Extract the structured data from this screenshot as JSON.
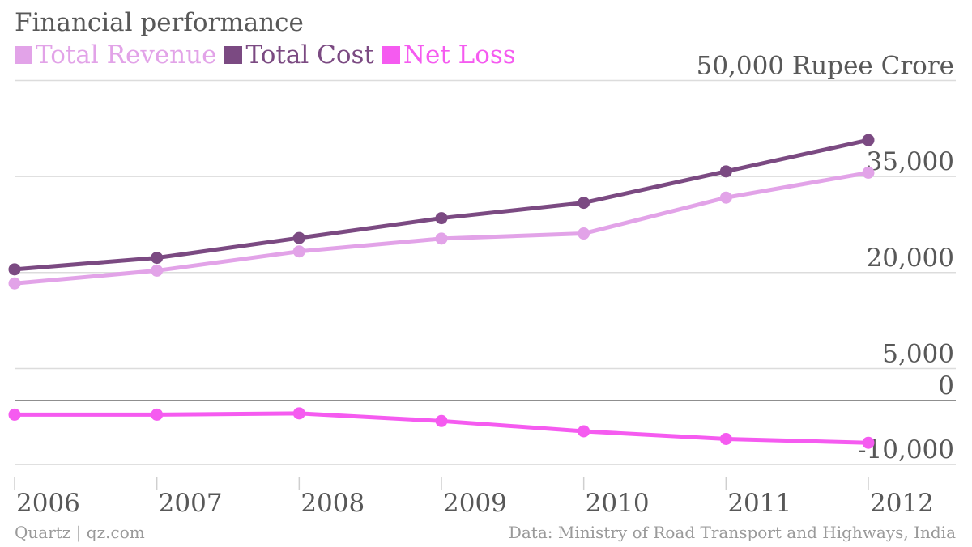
{
  "chart_data": {
    "type": "line",
    "title": "Financial performance",
    "unit_label": "Rupee Crore",
    "categories": [
      "2006",
      "2007",
      "2008",
      "2009",
      "2010",
      "2011",
      "2012"
    ],
    "yticks": [
      {
        "value": 50000,
        "label": "50,000"
      },
      {
        "value": 35000,
        "label": "35,000"
      },
      {
        "value": 20000,
        "label": "20,000"
      },
      {
        "value": 5000,
        "label": "5,000"
      },
      {
        "value": 0,
        "label": "0"
      },
      {
        "value": -10000,
        "label": "-10,000"
      }
    ],
    "ylim": [
      -10000,
      50000
    ],
    "series": [
      {
        "name": "Total Revenue",
        "color": "#e2a3e8",
        "values": [
          18300,
          20300,
          23300,
          25300,
          26100,
          31700,
          35600
        ]
      },
      {
        "name": "Total Cost",
        "color": "#7b4a82",
        "values": [
          20500,
          22300,
          25400,
          28500,
          30900,
          35800,
          40700
        ]
      },
      {
        "name": "Net Loss",
        "color": "#f55bf0",
        "values": [
          -2200,
          -2200,
          -2000,
          -3200,
          -4800,
          -6000,
          -6600
        ]
      }
    ],
    "grid": true,
    "legend_position": "top-left"
  },
  "footer": {
    "source_left": "Quartz | qz.com",
    "source_right": "Data: Ministry of Road Transport and Highways, India"
  }
}
